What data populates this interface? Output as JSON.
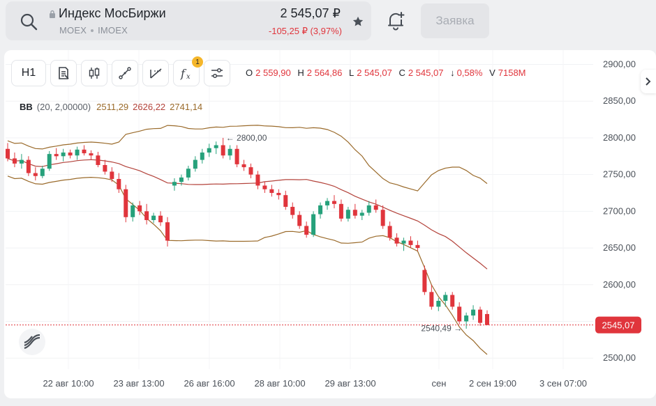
{
  "header": {
    "name": "Индекс МосБиржи",
    "exchange": "MOEX",
    "ticker": "IMOEX",
    "price": "2 545,07 ₽",
    "change": "-105,25 ₽ (3,97%)",
    "order_button": "Заявка",
    "icons": [
      "search-icon",
      "lock-icon",
      "star-icon",
      "bell-plus-icon"
    ]
  },
  "toolbar": {
    "timeframe": "H1",
    "tools": [
      "chart-type-icon",
      "candles-icon",
      "draw-line-icon",
      "draw-ray-icon",
      "indicators-icon",
      "settings-icon"
    ],
    "indicators_badge": "1"
  },
  "ohlc": {
    "o_label": "O",
    "o": "2 559,90",
    "h_label": "H",
    "h": "2 564,86",
    "l_label": "L",
    "l": "2 545,07",
    "c_label": "C",
    "c": "2 545,07",
    "chg_arrow": "↓",
    "chg": "0,58%",
    "v_label": "V",
    "v": "7158M"
  },
  "bb": {
    "name": "BB",
    "params": "(20, 2,00000)",
    "lower": "2511,29",
    "middle": "2626,22",
    "upper": "2741,14"
  },
  "colors": {
    "up": "#26a17b",
    "down": "#e0353c",
    "band": "#9a6a2a",
    "middle": "#b3423a"
  },
  "chart_data": {
    "type": "candlestick",
    "y_ticks": [
      "2900,00",
      "2850,00",
      "2800,00",
      "2750,00",
      "2700,00",
      "2650,00",
      "2600,00",
      "2550,00",
      "2500,00"
    ],
    "x_ticks": [
      "22 авг 10:00",
      "23 авг 13:00",
      "26 авг 16:00",
      "28 авг 10:00",
      "29 авг 13:00",
      "сен",
      "2 сен 19:00",
      "3 сен 07:00"
    ],
    "ylim": [
      2485,
      2910
    ],
    "last_price": 2545.07,
    "last_price_label": "2545,07",
    "annotations": [
      {
        "label": "2800,00",
        "value": 2800
      },
      {
        "label": "2540,49",
        "value": 2540.49
      }
    ],
    "candles": [
      [
        2785,
        2793,
        2768,
        2772
      ],
      [
        2772,
        2780,
        2760,
        2765
      ],
      [
        2765,
        2778,
        2758,
        2770
      ],
      [
        2770,
        2775,
        2748,
        2752
      ],
      [
        2752,
        2760,
        2742,
        2748
      ],
      [
        2748,
        2762,
        2745,
        2758
      ],
      [
        2758,
        2782,
        2755,
        2778
      ],
      [
        2778,
        2786,
        2770,
        2775
      ],
      [
        2775,
        2785,
        2768,
        2780
      ],
      [
        2780,
        2784,
        2772,
        2776
      ],
      [
        2776,
        2788,
        2770,
        2784
      ],
      [
        2784,
        2790,
        2776,
        2779
      ],
      [
        2779,
        2783,
        2770,
        2776
      ],
      [
        2776,
        2781,
        2760,
        2763
      ],
      [
        2763,
        2770,
        2750,
        2754
      ],
      [
        2754,
        2760,
        2740,
        2744
      ],
      [
        2744,
        2752,
        2725,
        2730
      ],
      [
        2730,
        2736,
        2685,
        2692
      ],
      [
        2692,
        2712,
        2686,
        2708
      ],
      [
        2708,
        2714,
        2695,
        2700
      ],
      [
        2700,
        2710,
        2682,
        2688
      ],
      [
        2688,
        2698,
        2684,
        2694
      ],
      [
        2694,
        2700,
        2680,
        2685
      ],
      [
        2685,
        2692,
        2652,
        2660
      ],
      [
        2735,
        2745,
        2728,
        2740
      ],
      [
        2740,
        2750,
        2735,
        2746
      ],
      [
        2746,
        2762,
        2742,
        2758
      ],
      [
        2758,
        2775,
        2754,
        2770
      ],
      [
        2770,
        2785,
        2765,
        2780
      ],
      [
        2780,
        2792,
        2774,
        2786
      ],
      [
        2786,
        2795,
        2778,
        2790
      ],
      [
        2790,
        2800,
        2772,
        2776
      ],
      [
        2776,
        2790,
        2770,
        2785
      ],
      [
        2785,
        2790,
        2760,
        2764
      ],
      [
        2764,
        2770,
        2755,
        2760
      ],
      [
        2760,
        2765,
        2745,
        2750
      ],
      [
        2750,
        2755,
        2730,
        2735
      ],
      [
        2735,
        2740,
        2725,
        2730
      ],
      [
        2730,
        2736,
        2720,
        2725
      ],
      [
        2725,
        2730,
        2716,
        2722
      ],
      [
        2722,
        2728,
        2702,
        2706
      ],
      [
        2706,
        2712,
        2690,
        2695
      ],
      [
        2695,
        2700,
        2676,
        2680
      ],
      [
        2680,
        2686,
        2664,
        2668
      ],
      [
        2668,
        2700,
        2665,
        2696
      ],
      [
        2696,
        2712,
        2690,
        2708
      ],
      [
        2708,
        2718,
        2702,
        2714
      ],
      [
        2714,
        2722,
        2704,
        2710
      ],
      [
        2710,
        2716,
        2686,
        2690
      ],
      [
        2690,
        2706,
        2686,
        2702
      ],
      [
        2702,
        2710,
        2690,
        2694
      ],
      [
        2694,
        2702,
        2688,
        2698
      ],
      [
        2698,
        2714,
        2694,
        2708
      ],
      [
        2708,
        2716,
        2698,
        2702
      ],
      [
        2702,
        2708,
        2676,
        2680
      ],
      [
        2680,
        2686,
        2660,
        2664
      ],
      [
        2664,
        2670,
        2652,
        2656
      ],
      [
        2656,
        2664,
        2646,
        2660
      ],
      [
        2660,
        2666,
        2650,
        2654
      ],
      [
        2654,
        2660,
        2646,
        2650
      ],
      [
        2620,
        2626,
        2586,
        2590
      ],
      [
        2590,
        2600,
        2566,
        2570
      ],
      [
        2570,
        2582,
        2564,
        2578
      ],
      [
        2578,
        2590,
        2570,
        2586
      ],
      [
        2586,
        2590,
        2566,
        2570
      ],
      [
        2570,
        2576,
        2546,
        2550
      ],
      [
        2550,
        2562,
        2540,
        2558
      ],
      [
        2558,
        2572,
        2552,
        2566
      ],
      [
        2566,
        2570,
        2544,
        2548
      ],
      [
        2560,
        2565,
        2545,
        2545
      ]
    ]
  }
}
